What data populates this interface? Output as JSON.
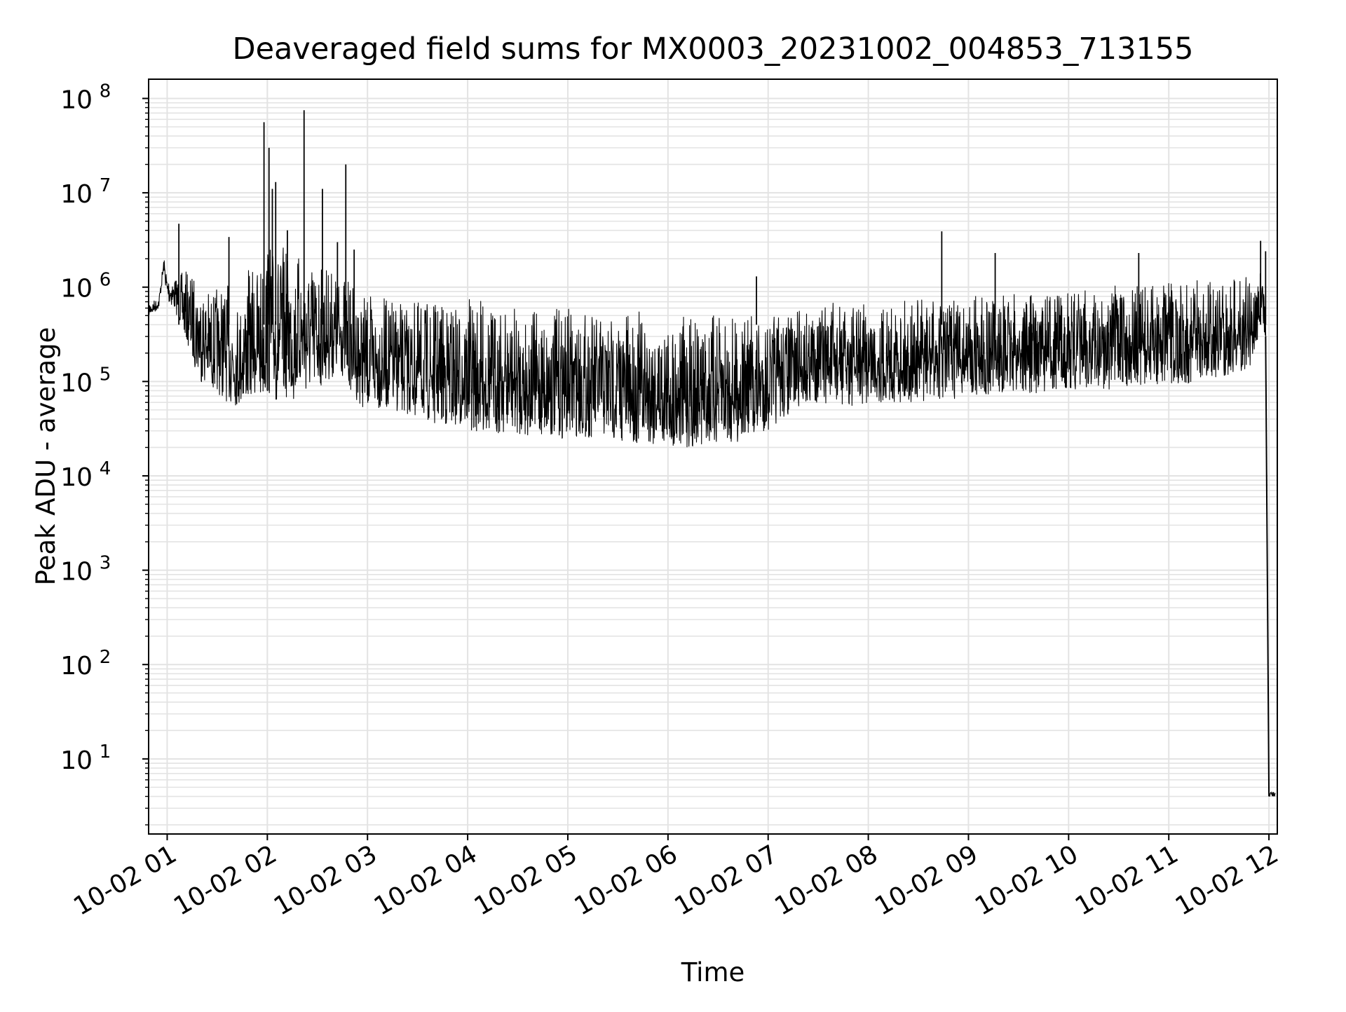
{
  "chart_data": {
    "type": "line",
    "title": "Deaveraged field sums for MX0003_20231002_004853_713155",
    "xlabel": "Time",
    "ylabel": "Peak ADU - average",
    "yscale": "log",
    "ylim": [
      1.6,
      160000000
    ],
    "xlim": [
      "2023-10-02 00:48:53",
      "2023-10-02 12:05:00"
    ],
    "grid": true,
    "line_color": "#000000",
    "x_ticks": [
      {
        "t": "2023-10-02 01:00",
        "label": "10-02 01"
      },
      {
        "t": "2023-10-02 02:00",
        "label": "10-02 02"
      },
      {
        "t": "2023-10-02 03:00",
        "label": "10-02 03"
      },
      {
        "t": "2023-10-02 04:00",
        "label": "10-02 04"
      },
      {
        "t": "2023-10-02 05:00",
        "label": "10-02 05"
      },
      {
        "t": "2023-10-02 06:00",
        "label": "10-02 06"
      },
      {
        "t": "2023-10-02 07:00",
        "label": "10-02 07"
      },
      {
        "t": "2023-10-02 08:00",
        "label": "10-02 08"
      },
      {
        "t": "2023-10-02 09:00",
        "label": "10-02 09"
      },
      {
        "t": "2023-10-02 10:00",
        "label": "10-02 10"
      },
      {
        "t": "2023-10-02 11:00",
        "label": "10-02 11"
      },
      {
        "t": "2023-10-02 12:00",
        "label": "10-02 12"
      }
    ],
    "y_ticks": [
      {
        "value": 10,
        "base": "10",
        "exp": "1"
      },
      {
        "value": 100,
        "base": "10",
        "exp": "2"
      },
      {
        "value": 1000,
        "base": "10",
        "exp": "3"
      },
      {
        "value": 10000,
        "base": "10",
        "exp": "4"
      },
      {
        "value": 100000,
        "base": "10",
        "exp": "5"
      },
      {
        "value": 1000000,
        "base": "10",
        "exp": "6"
      },
      {
        "value": 10000000,
        "base": "10",
        "exp": "7"
      },
      {
        "value": 100000000,
        "base": "10",
        "exp": "8"
      }
    ],
    "series": [
      {
        "x": [
          "2023-10-02 00:49",
          "2023-10-02 00:53",
          "2023-10-02 00:55",
          "2023-10-02 00:58",
          "2023-10-02 01:00",
          "2023-10-02 01:04",
          "2023-10-02 01:08",
          "2023-10-02 01:12",
          "2023-10-02 01:16",
          "2023-10-02 01:20",
          "2023-10-02 01:24",
          "2023-10-02 01:28",
          "2023-10-02 01:32",
          "2023-10-02 01:36",
          "2023-10-02 01:40",
          "2023-10-02 01:44",
          "2023-10-02 01:48",
          "2023-10-02 01:52",
          "2023-10-02 01:56",
          "2023-10-02 02:00",
          "2023-10-02 02:04",
          "2023-10-02 02:08",
          "2023-10-02 02:12",
          "2023-10-02 02:16",
          "2023-10-02 02:20",
          "2023-10-02 02:24",
          "2023-10-02 02:28",
          "2023-10-02 02:32",
          "2023-10-02 02:36",
          "2023-10-02 02:40",
          "2023-10-02 02:44",
          "2023-10-02 02:48",
          "2023-10-02 02:52",
          "2023-10-02 02:56",
          "2023-10-02 03:00",
          "2023-10-02 03:10",
          "2023-10-02 03:20",
          "2023-10-02 03:30",
          "2023-10-02 03:40",
          "2023-10-02 03:50",
          "2023-10-02 04:00",
          "2023-10-02 04:10",
          "2023-10-02 04:20",
          "2023-10-02 04:30",
          "2023-10-02 04:40",
          "2023-10-02 04:50",
          "2023-10-02 05:00",
          "2023-10-02 05:10",
          "2023-10-02 05:20",
          "2023-10-02 05:30",
          "2023-10-02 05:40",
          "2023-10-02 05:50",
          "2023-10-02 06:00",
          "2023-10-02 06:10",
          "2023-10-02 06:20",
          "2023-10-02 06:30",
          "2023-10-02 06:40",
          "2023-10-02 06:50",
          "2023-10-02 07:00",
          "2023-10-02 07:10",
          "2023-10-02 07:20",
          "2023-10-02 07:30",
          "2023-10-02 07:40",
          "2023-10-02 07:50",
          "2023-10-02 08:00",
          "2023-10-02 08:10",
          "2023-10-02 08:20",
          "2023-10-02 08:30",
          "2023-10-02 08:40",
          "2023-10-02 08:50",
          "2023-10-02 09:00",
          "2023-10-02 09:10",
          "2023-10-02 09:20",
          "2023-10-02 09:30",
          "2023-10-02 09:40",
          "2023-10-02 09:50",
          "2023-10-02 10:00",
          "2023-10-02 10:10",
          "2023-10-02 10:20",
          "2023-10-02 10:30",
          "2023-10-02 10:40",
          "2023-10-02 10:50",
          "2023-10-02 11:00",
          "2023-10-02 11:10",
          "2023-10-02 11:20",
          "2023-10-02 11:30",
          "2023-10-02 11:40",
          "2023-10-02 11:50",
          "2023-10-02 11:55",
          "2023-10-02 11:58",
          "2023-10-02 12:00",
          "2023-10-02 12:01",
          "2023-10-02 12:02",
          "2023-10-02 12:03",
          "2023-10-02 12:04"
        ],
        "lo": [
          500000,
          550000,
          600000,
          1500000,
          700000,
          600000,
          400000,
          250000,
          150000,
          100000,
          90000,
          80000,
          70000,
          60000,
          55000,
          55000,
          60000,
          70000,
          60000,
          70000,
          60000,
          55000,
          70000,
          60000,
          80000,
          70000,
          75000,
          90000,
          100000,
          110000,
          120000,
          90000,
          70000,
          55000,
          50000,
          50000,
          45000,
          40000,
          35000,
          32000,
          30000,
          28000,
          28000,
          27000,
          26000,
          25000,
          25000,
          25000,
          24000,
          23000,
          22000,
          21000,
          20000,
          20000,
          20000,
          21000,
          22000,
          25000,
          30000,
          40000,
          55000,
          60000,
          55000,
          55000,
          60000,
          60000,
          60000,
          60000,
          65000,
          65000,
          70000,
          70000,
          75000,
          75000,
          75000,
          80000,
          80000,
          80000,
          80000,
          85000,
          85000,
          90000,
          90000,
          95000,
          100000,
          110000,
          120000,
          150000,
          400000,
          300000,
          4,
          4,
          4,
          4,
          4
        ],
        "hi": [
          700000,
          750000,
          800000,
          2100000,
          1400000,
          1300000,
          1400000,
          1500000,
          1400000,
          1300000,
          1000000,
          900000,
          1200000,
          1100000,
          800000,
          800000,
          1500000,
          1700000,
          2000000,
          3500000,
          3000000,
          2800000,
          2500000,
          2400000,
          2500000,
          2200000,
          2000000,
          2000000,
          1800000,
          1500000,
          1400000,
          1300000,
          1000000,
          900000,
          800000,
          800000,
          700000,
          700000,
          700000,
          750000,
          750000,
          700000,
          650000,
          600000,
          600000,
          600000,
          600000,
          550000,
          550000,
          550000,
          550000,
          550000,
          500000,
          500000,
          500000,
          500000,
          520000,
          530000,
          540000,
          550000,
          650000,
          700000,
          700000,
          700000,
          700000,
          700000,
          750000,
          750000,
          750000,
          800000,
          800000,
          800000,
          850000,
          900000,
          900000,
          950000,
          950000,
          950000,
          1000000,
          1050000,
          1100000,
          1100000,
          1100000,
          1150000,
          1200000,
          1250000,
          1300000,
          1400000,
          1500000,
          800000,
          4.5,
          4.5,
          4.5,
          4.5,
          4.5
        ]
      }
    ],
    "spikes": [
      {
        "x": "2023-10-02 01:07",
        "y": 4700000
      },
      {
        "x": "2023-10-02 01:37",
        "y": 3400000
      },
      {
        "x": "2023-10-02 01:58",
        "y": 56000000
      },
      {
        "x": "2023-10-02 02:01",
        "y": 30000000
      },
      {
        "x": "2023-10-02 02:03",
        "y": 11000000
      },
      {
        "x": "2023-10-02 02:05",
        "y": 13000000
      },
      {
        "x": "2023-10-02 02:12",
        "y": 4000000
      },
      {
        "x": "2023-10-02 02:22",
        "y": 75000000
      },
      {
        "x": "2023-10-02 02:33",
        "y": 11000000
      },
      {
        "x": "2023-10-02 02:42",
        "y": 3000000
      },
      {
        "x": "2023-10-02 02:47",
        "y": 20000000
      },
      {
        "x": "2023-10-02 02:52",
        "y": 2500000
      },
      {
        "x": "2023-10-02 06:53",
        "y": 1300000
      },
      {
        "x": "2023-10-02 08:44",
        "y": 3900000
      },
      {
        "x": "2023-10-02 09:16",
        "y": 2300000
      },
      {
        "x": "2023-10-02 10:42",
        "y": 2300000
      },
      {
        "x": "2023-10-02 11:55",
        "y": 3100000
      },
      {
        "x": "2023-10-02 11:58",
        "y": 2400000
      }
    ]
  }
}
